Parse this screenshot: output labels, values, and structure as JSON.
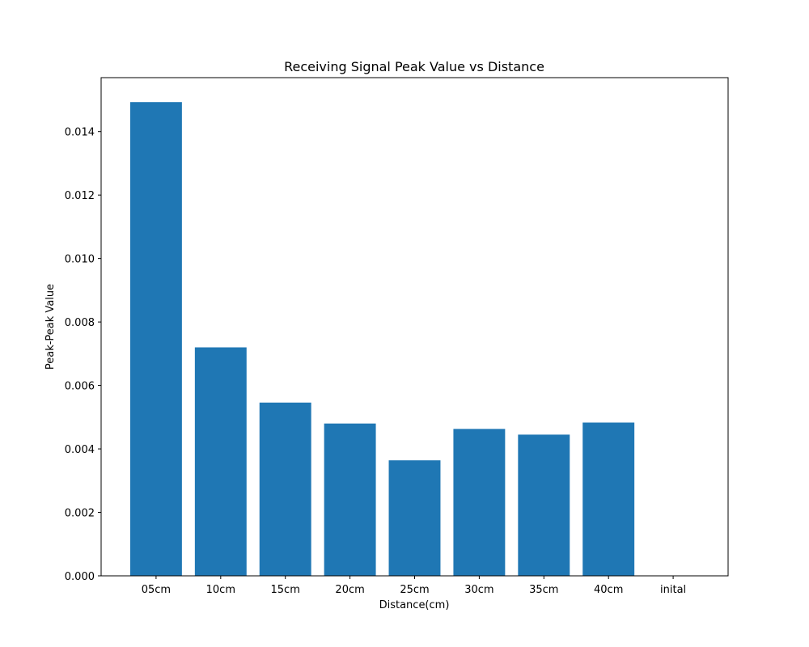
{
  "chart_data": {
    "type": "bar",
    "title": "Receiving Signal Peak Value vs Distance",
    "xlabel": "Distance(cm)",
    "ylabel": "Peak-Peak Value",
    "categories": [
      "05cm",
      "10cm",
      "15cm",
      "20cm",
      "25cm",
      "30cm",
      "35cm",
      "40cm",
      "inital"
    ],
    "values": [
      0.01493,
      0.0072,
      0.00546,
      0.0048,
      0.00364,
      0.00463,
      0.00445,
      0.00483,
      0.0
    ],
    "ylim": [
      0,
      0.0157
    ],
    "yticks": [
      0.0,
      0.002,
      0.004,
      0.006,
      0.008,
      0.01,
      0.012,
      0.014
    ],
    "ytick_labels": [
      "0.000",
      "0.002",
      "0.004",
      "0.006",
      "0.008",
      "0.010",
      "0.012",
      "0.014"
    ],
    "bar_color": "#1f77b4",
    "grid": false,
    "legend": false
  }
}
